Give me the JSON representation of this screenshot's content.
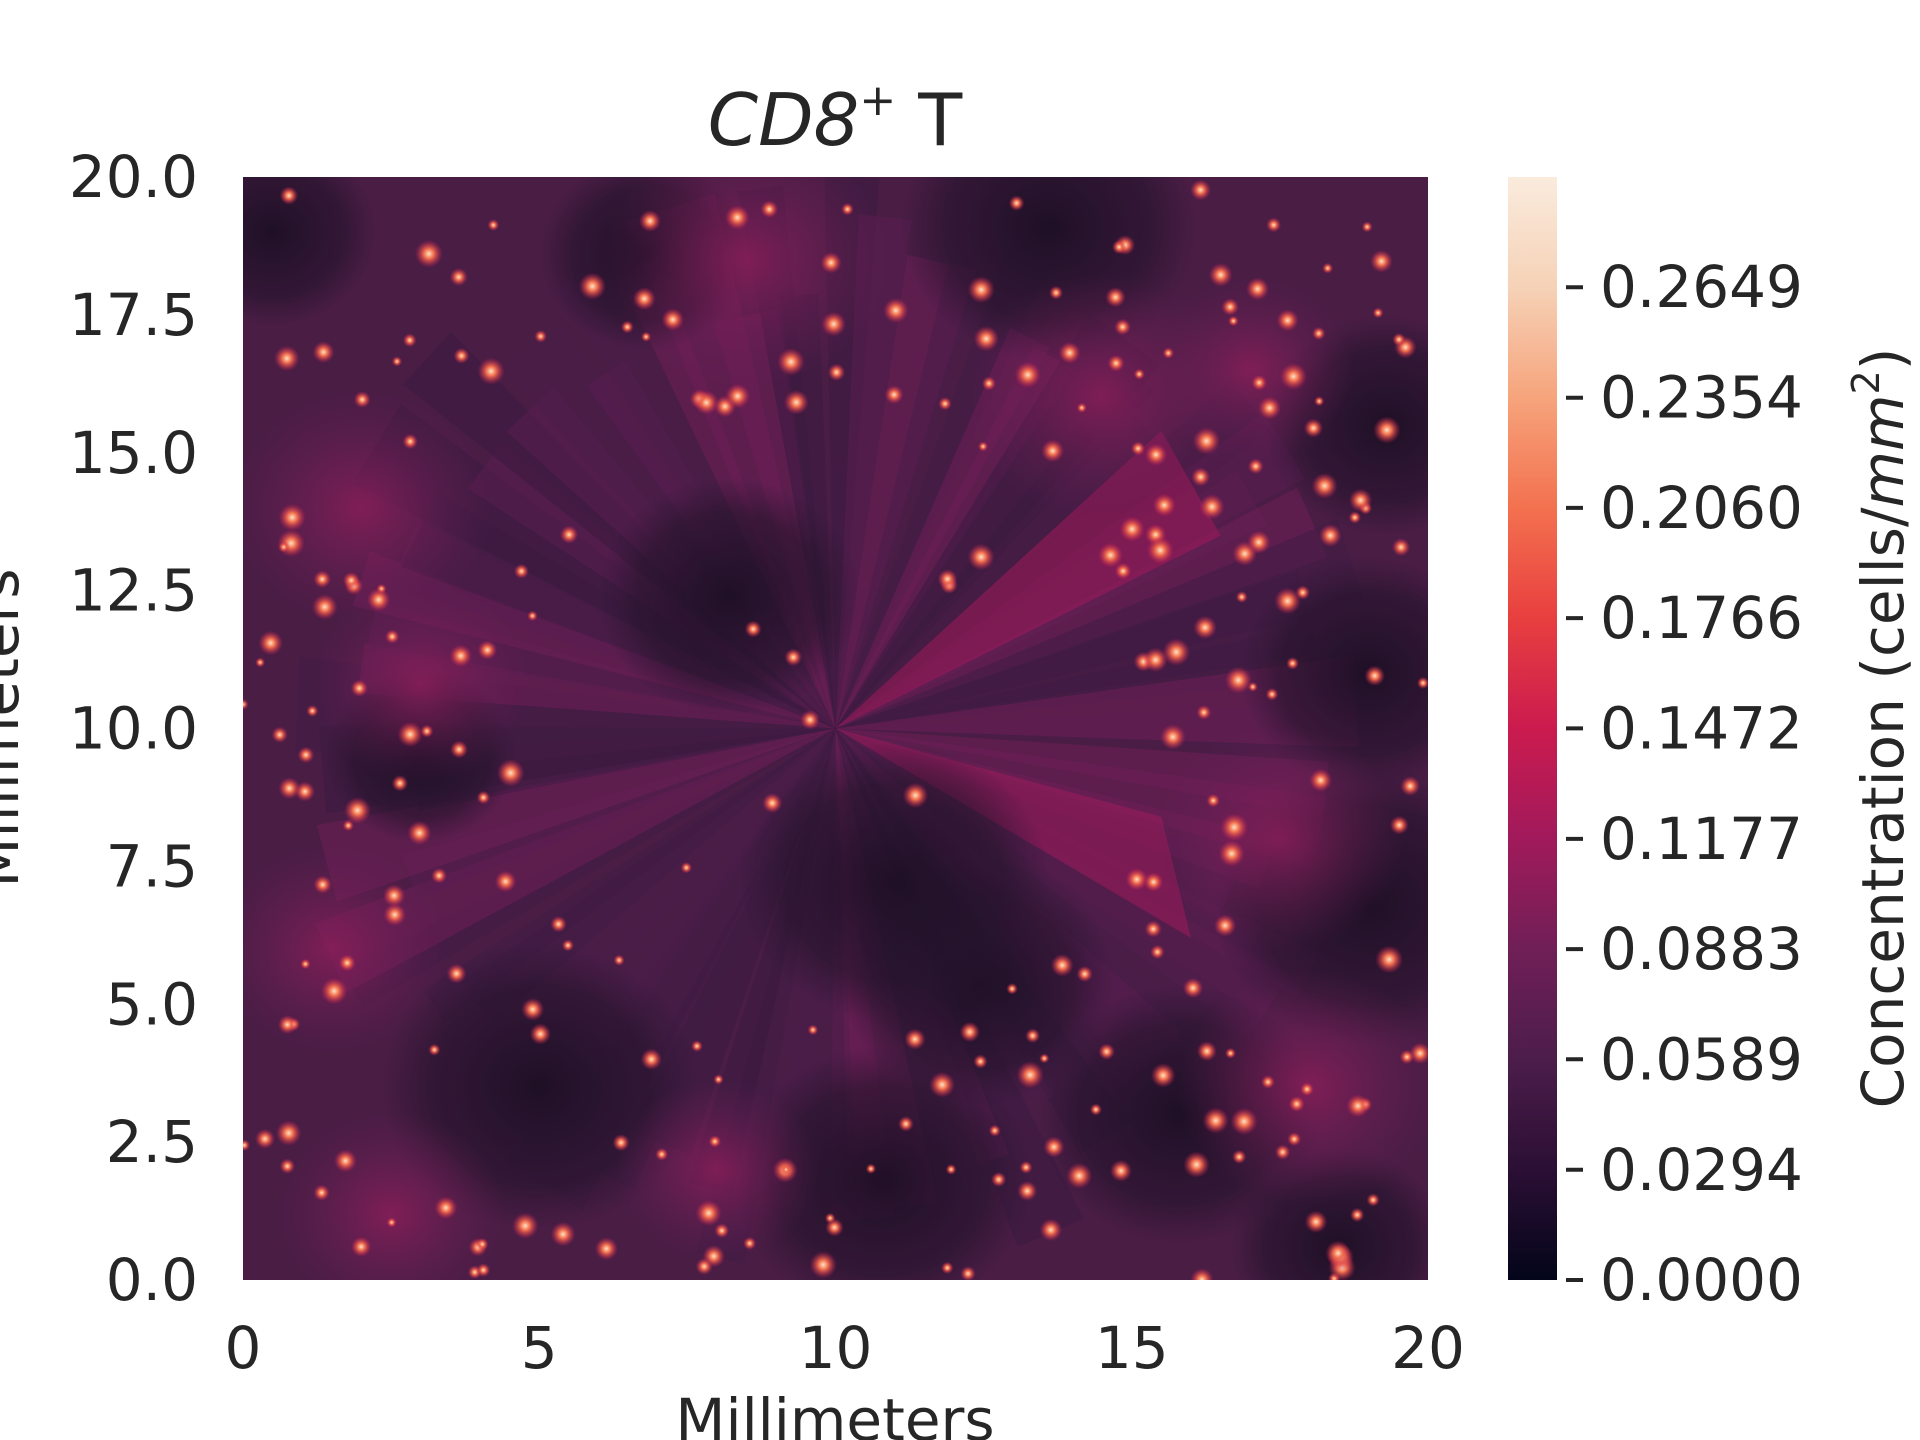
{
  "chart_data": {
    "type": "heatmap",
    "title": {
      "main": "CD8",
      "superscript": "+",
      "suffix": "T"
    },
    "xlabel": "Millimeters",
    "ylabel": "Millimeters",
    "xlim": [
      0,
      20
    ],
    "ylim": [
      0,
      20
    ],
    "x_ticks": [
      "0",
      "5",
      "10",
      "15",
      "20"
    ],
    "x_tick_values": [
      0,
      5,
      10,
      15,
      20
    ],
    "y_ticks": [
      "0.0",
      "2.5",
      "5.0",
      "7.5",
      "10.0",
      "12.5",
      "15.0",
      "17.5",
      "20.0"
    ],
    "y_tick_values": [
      0,
      2.5,
      5,
      7.5,
      10,
      12.5,
      15,
      17.5,
      20
    ],
    "grid": false,
    "colorbar": {
      "label_prefix": "Concentration (cells/",
      "label_unit": "mm",
      "label_exp": "2",
      "label_suffix": ")",
      "range": [
        0,
        0.2943
      ],
      "ticks": [
        "0.0000",
        "0.0294",
        "0.0589",
        "0.0883",
        "0.1177",
        "0.1472",
        "0.1766",
        "0.2060",
        "0.2354",
        "0.2649"
      ],
      "tick_values": [
        0,
        0.0294,
        0.0589,
        0.0883,
        0.1177,
        0.1472,
        0.1766,
        0.206,
        0.2354,
        0.2649
      ],
      "colormap": "rocket",
      "colors": [
        "#03051a",
        "#2b0f34",
        "#4c1d4b",
        "#701f57",
        "#a11a5b",
        "#cb1b4f",
        "#e83f3f",
        "#f3714f",
        "#f6a47c",
        "#f6d2b7",
        "#faebdd"
      ]
    },
    "description_values": {
      "background_level": 0.06,
      "center": [
        10,
        10
      ]
    }
  }
}
